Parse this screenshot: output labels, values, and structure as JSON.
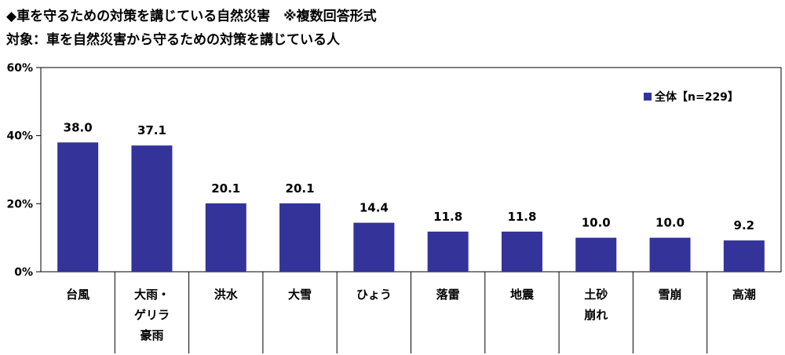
{
  "header": {
    "title": "◆車を守るための対策を講じている自然災害　※複数回答形式",
    "subtitle": "対象：車を自然災害から守るための対策を講じている人"
  },
  "chart_data": {
    "type": "bar",
    "categories": [
      [
        "台風"
      ],
      [
        "大雨・",
        "ゲリラ",
        "豪雨"
      ],
      [
        "洪水"
      ],
      [
        "大雪"
      ],
      [
        "ひょう"
      ],
      [
        "落雷"
      ],
      [
        "地震"
      ],
      [
        "土砂",
        "崩れ"
      ],
      [
        "雪崩"
      ],
      [
        "高潮"
      ]
    ],
    "series": [
      {
        "name": "全体【n=229】",
        "values": [
          38.0,
          37.1,
          20.1,
          20.1,
          14.4,
          11.8,
          11.8,
          10.0,
          10.0,
          9.2
        ],
        "labels": [
          "38.0",
          "37.1",
          "20.1",
          "20.1",
          "14.4",
          "11.8",
          "11.8",
          "10.0",
          "10.0",
          "9.2"
        ],
        "color": "#333399"
      }
    ],
    "yticks": [
      0,
      20,
      40,
      60
    ],
    "ytick_labels": [
      "0%",
      "20%",
      "40%",
      "60%"
    ],
    "ylim": [
      0,
      60
    ],
    "grid": false,
    "legend_position": "top-right"
  }
}
